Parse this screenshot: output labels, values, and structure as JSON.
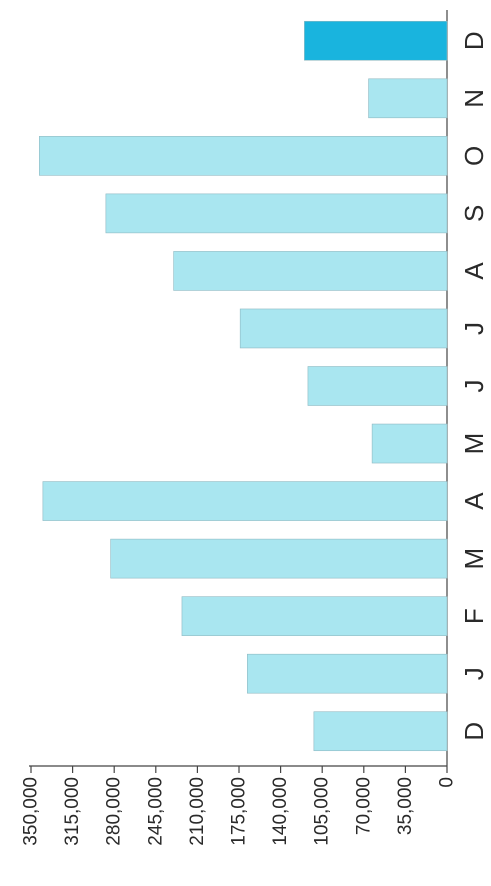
{
  "chart_data": {
    "type": "bar",
    "orientation": "vertical, rotated 90 degrees clockwise in the image",
    "categories": [
      "D",
      "J",
      "F",
      "M",
      "A",
      "M",
      "J",
      "J",
      "A",
      "S",
      "O",
      "N",
      "D"
    ],
    "values": [
      112000,
      168000,
      223000,
      283000,
      340000,
      63000,
      117000,
      174000,
      230000,
      287000,
      343000,
      66000,
      120000
    ],
    "highlight_index": 12,
    "ylim": [
      0,
      350000
    ],
    "yticks": [
      "0",
      "35,000",
      "70,000",
      "105,000",
      "140,000",
      "175,000",
      "210,000",
      "245,000",
      "280,000",
      "315,000",
      "350,000"
    ],
    "title": "",
    "xlabel": "",
    "ylabel": "",
    "grid": false,
    "colors": {
      "bar": "#a9e6f0",
      "bar_highlight": "#19b4de",
      "axis": "#444444",
      "text": "#2a2a2a"
    }
  }
}
